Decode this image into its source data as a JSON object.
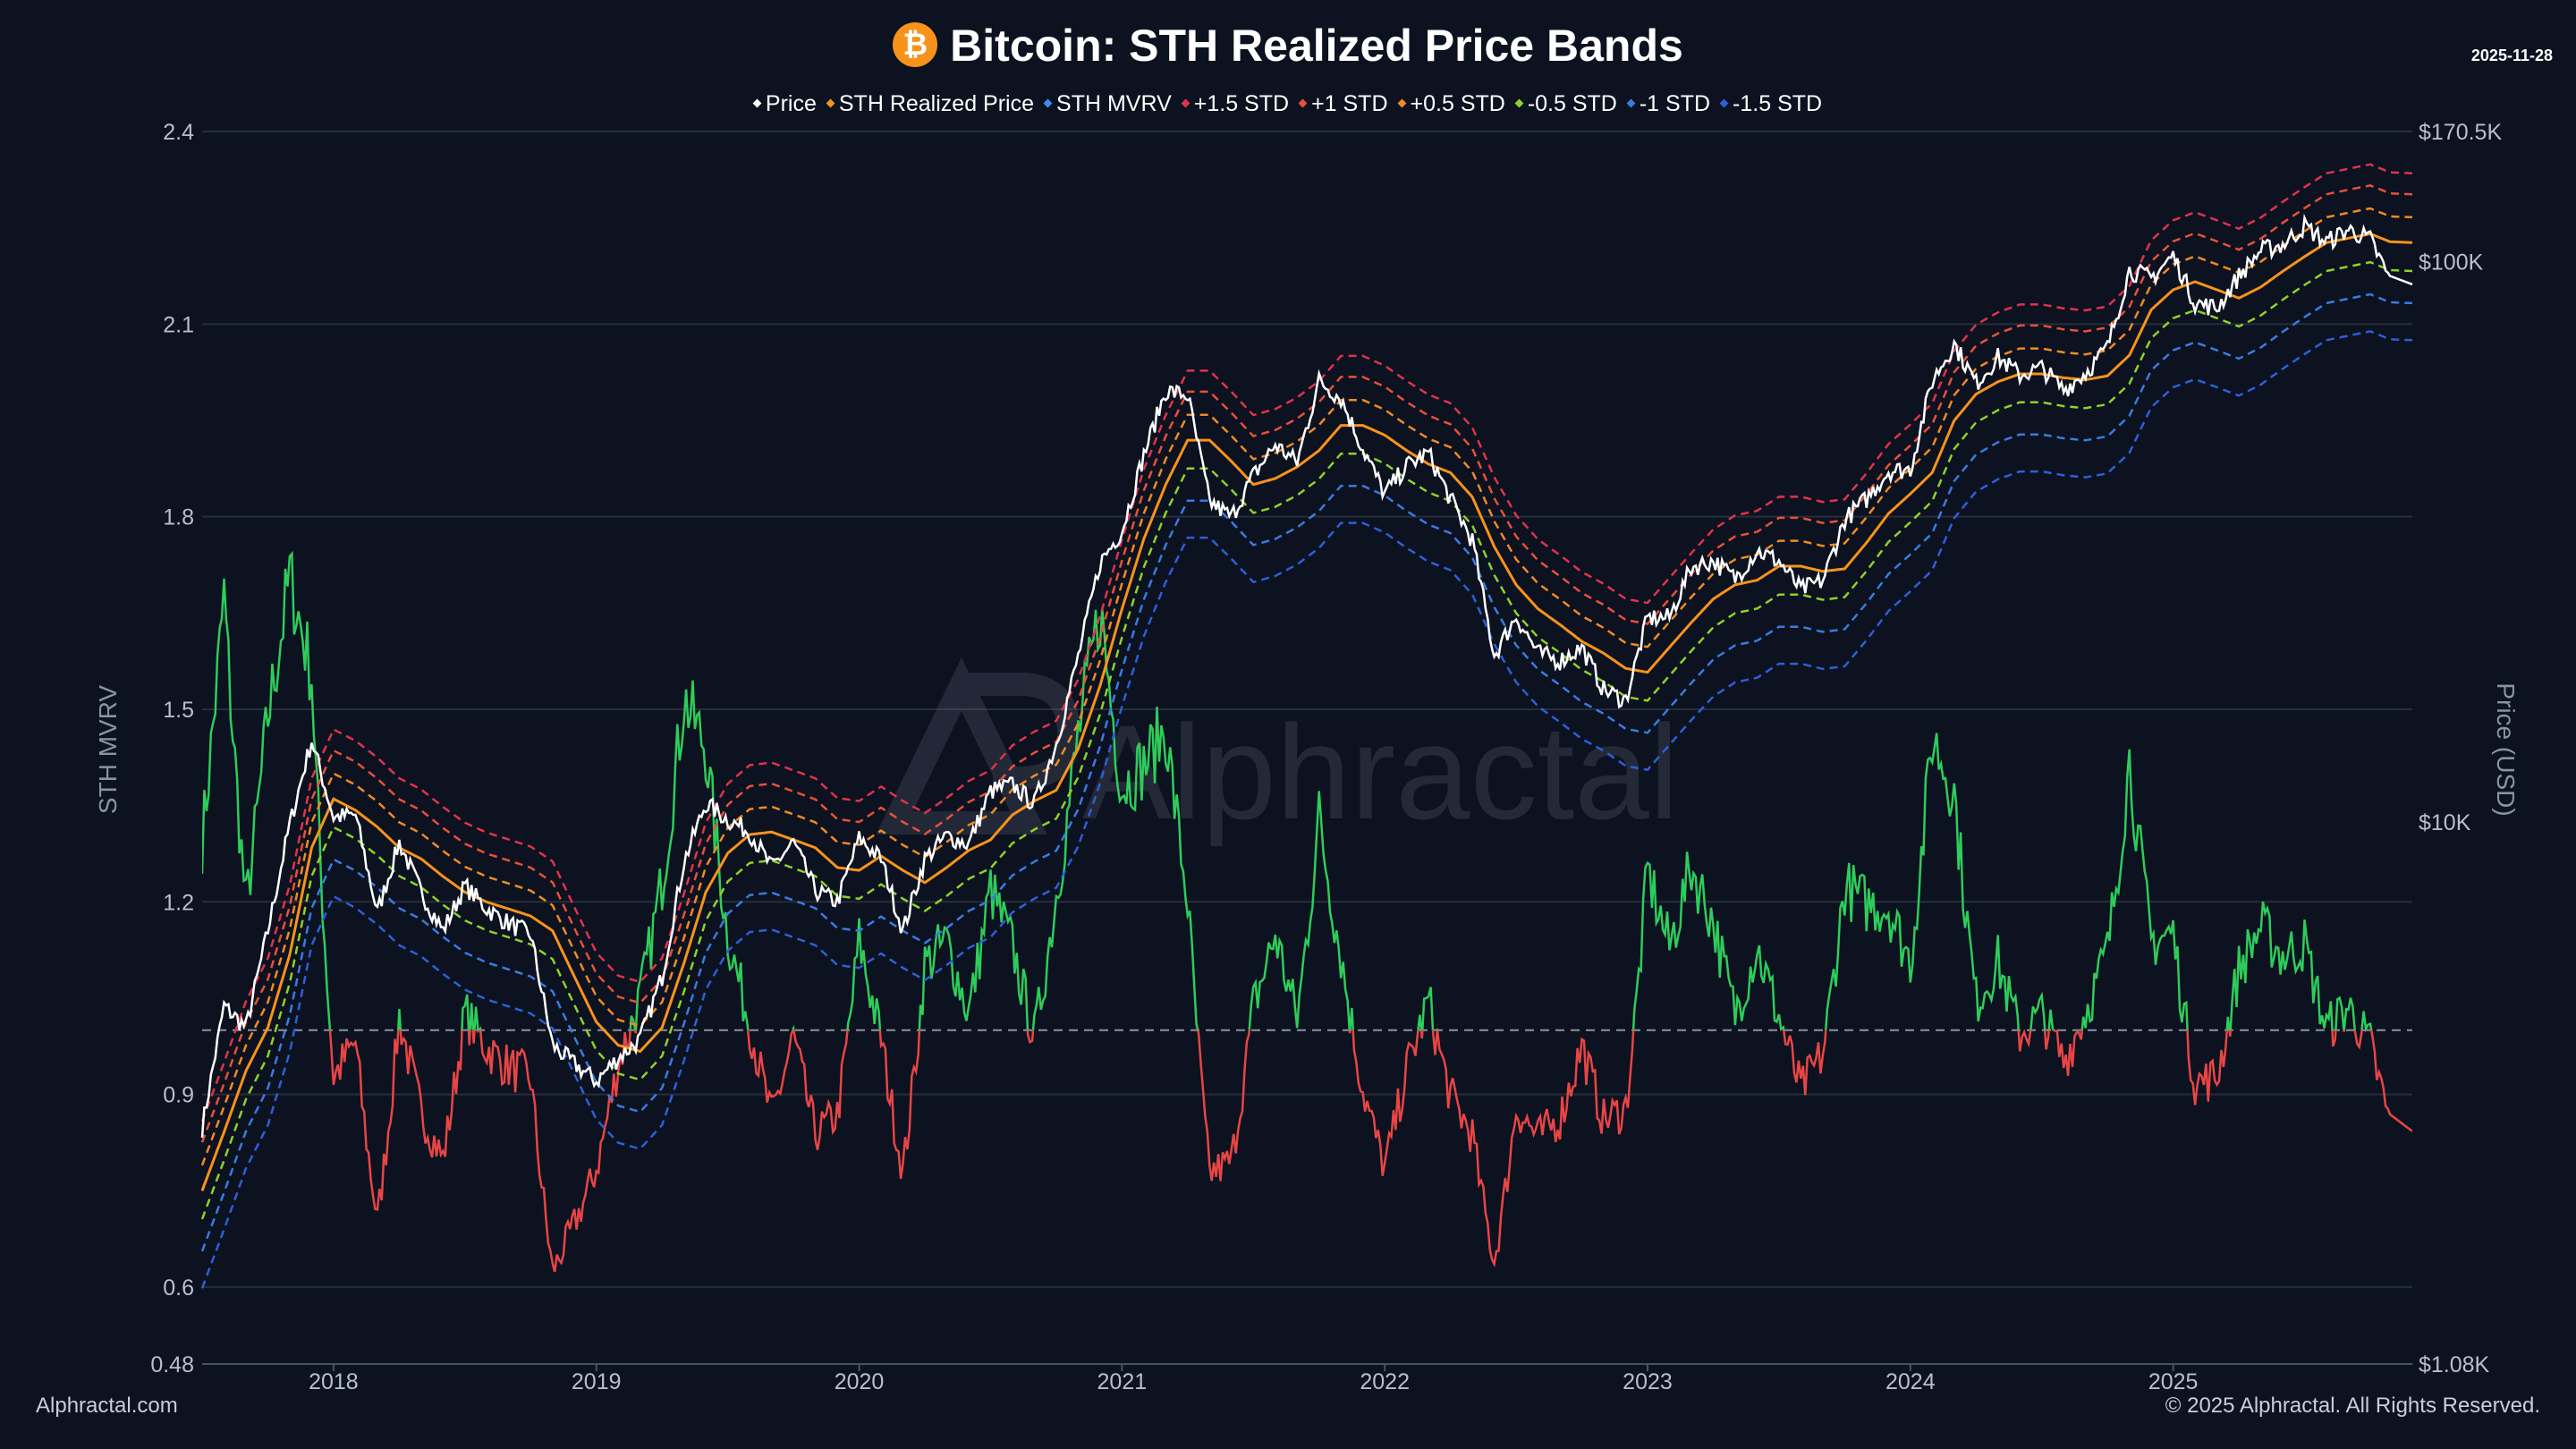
{
  "header": {
    "title": "Bitcoin: STH Realized Price Bands",
    "logo_icon": "bitcoin-icon",
    "date": "2025-11-28"
  },
  "footer": {
    "left": "Alphractal.com",
    "right": "© 2025 Alphractal. All Rights Reserved."
  },
  "watermark": "Alphractal",
  "chart_data": {
    "type": "line",
    "title": "Bitcoin: STH Realized Price Bands",
    "ylabel_left": "STH MVRV",
    "ylabel_right": "Price (USD)",
    "ylim_left": [
      0.48,
      2.4
    ],
    "left_ticks": [
      "2.4",
      "2.1",
      "1.8",
      "1.5",
      "1.2",
      "0.9",
      "0.6",
      "0.48"
    ],
    "left_tick_values": [
      2.4,
      2.1,
      1.8,
      1.5,
      1.2,
      0.9,
      0.6,
      0.48
    ],
    "ylim_right": [
      1080,
      170500
    ],
    "right_scale": "log",
    "right_ticks": [
      "$170.5K",
      "$100K",
      "$10K",
      "$1.08K"
    ],
    "right_tick_values": [
      170500,
      100000,
      10000,
      1080
    ],
    "x_ticks": [
      "2018",
      "2019",
      "2020",
      "2021",
      "2022",
      "2023",
      "2024",
      "2025"
    ],
    "x_range": [
      "2017-07",
      "2025-11-28"
    ],
    "reference_line_mvrv": 1.0,
    "grid": "horizontal",
    "legend_position": "top",
    "colors": {
      "price": "#ffffff",
      "realized": "#f7931a",
      "mvrv_above": "#2ecc5a",
      "mvrv_below": "#e84545",
      "plus15": "#e0334a",
      "plus1": "#e8503a",
      "plus05": "#f08a24",
      "minus05": "#8fd12a",
      "minus1": "#3a7be0",
      "minus15": "#2d5fd6"
    },
    "legend": [
      {
        "name": "Price",
        "color": "#ffffff"
      },
      {
        "name": "STH Realized Price",
        "color": "#f7931a"
      },
      {
        "name": "STH MVRV",
        "color": "#3a8fe8"
      },
      {
        "name": "+1.5 STD",
        "color": "#e0334a"
      },
      {
        "name": "+1 STD",
        "color": "#e8503a"
      },
      {
        "name": "+0.5 STD",
        "color": "#f08a24"
      },
      {
        "name": "-0.5 STD",
        "color": "#8fd12a"
      },
      {
        "name": "-1 STD",
        "color": "#3a7be0"
      },
      {
        "name": "-1.5 STD",
        "color": "#2d5fd6"
      }
    ],
    "mvrv_std": 0.22,
    "bands": [
      {
        "name": "+1.5 STD",
        "k": 1.5,
        "color": "#e0334a"
      },
      {
        "name": "+1 STD",
        "k": 1,
        "color": "#e8503a"
      },
      {
        "name": "+0.5 STD",
        "k": 0.5,
        "color": "#f08a24"
      },
      {
        "name": "-0.5 STD",
        "k": -0.5,
        "color": "#8fd12a"
      },
      {
        "name": "-1 STD",
        "k": -1,
        "color": "#3a7be0"
      },
      {
        "name": "-1.5 STD",
        "k": -1.5,
        "color": "#2d5fd6"
      }
    ],
    "months_start": "2017-07",
    "price": [
      2850,
      4700,
      4300,
      6400,
      9900,
      14000,
      10200,
      10300,
      6900,
      9200,
      7500,
      6400,
      7700,
      7000,
      6600,
      6300,
      4000,
      3700,
      3450,
      3800,
      4100,
      5300,
      8500,
      10800,
      10100,
      9600,
      8300,
      9200,
      7550,
      7200,
      9350,
      8600,
      6400,
      8600,
      9450,
      9140,
      11350,
      11650,
      10780,
      13800,
      19700,
      29000,
      33100,
      45200,
      58800,
      57700,
      37300,
      35000,
      41500,
      47100,
      43800,
      61300,
      57000,
      46300,
      38500,
      43200,
      45500,
      37700,
      31800,
      19800,
      23300,
      20000,
      19400,
      20500,
      17200,
      16500,
      23100,
      23150,
      28500,
      29250,
      27200,
      30500,
      29200,
      25950,
      26950,
      34650,
      37700,
      42300,
      42600,
      61200,
      71300,
      60600,
      67500,
      62700,
      64600,
      59000,
      63300,
      70200,
      96400,
      93400,
      102400,
      84400,
      82500,
      94200,
      104600,
      107100,
      115700,
      108200,
      114000,
      109500,
      91000
    ],
    "sth_realized_price": [
      2200,
      2800,
      3600,
      4300,
      5800,
      9000,
      11000,
      10500,
      9800,
      9000,
      8600,
      8000,
      7500,
      7200,
      7000,
      6800,
      6400,
      5300,
      4400,
      4000,
      3900,
      4300,
      5600,
      7500,
      8800,
      9500,
      9600,
      9300,
      9000,
      8300,
      8200,
      8700,
      8200,
      7800,
      8300,
      8900,
      9300,
      10300,
      10900,
      11400,
      13500,
      17500,
      24000,
      32000,
      40000,
      48000,
      48000,
      44000,
      40000,
      41000,
      43000,
      46000,
      51000,
      51000,
      49000,
      46000,
      43500,
      42000,
      38000,
      31000,
      26500,
      24000,
      22500,
      21000,
      20000,
      18800,
      18500,
      20500,
      22700,
      25000,
      26500,
      27000,
      28600,
      28600,
      28000,
      28300,
      31500,
      35500,
      38500,
      42000,
      52000,
      58000,
      61000,
      63000,
      63000,
      62000,
      61500,
      62500,
      68000,
      82000,
      89000,
      92000,
      89000,
      86000,
      90000,
      96000,
      102000,
      108000,
      110000,
      112000,
      108000
    ]
  }
}
